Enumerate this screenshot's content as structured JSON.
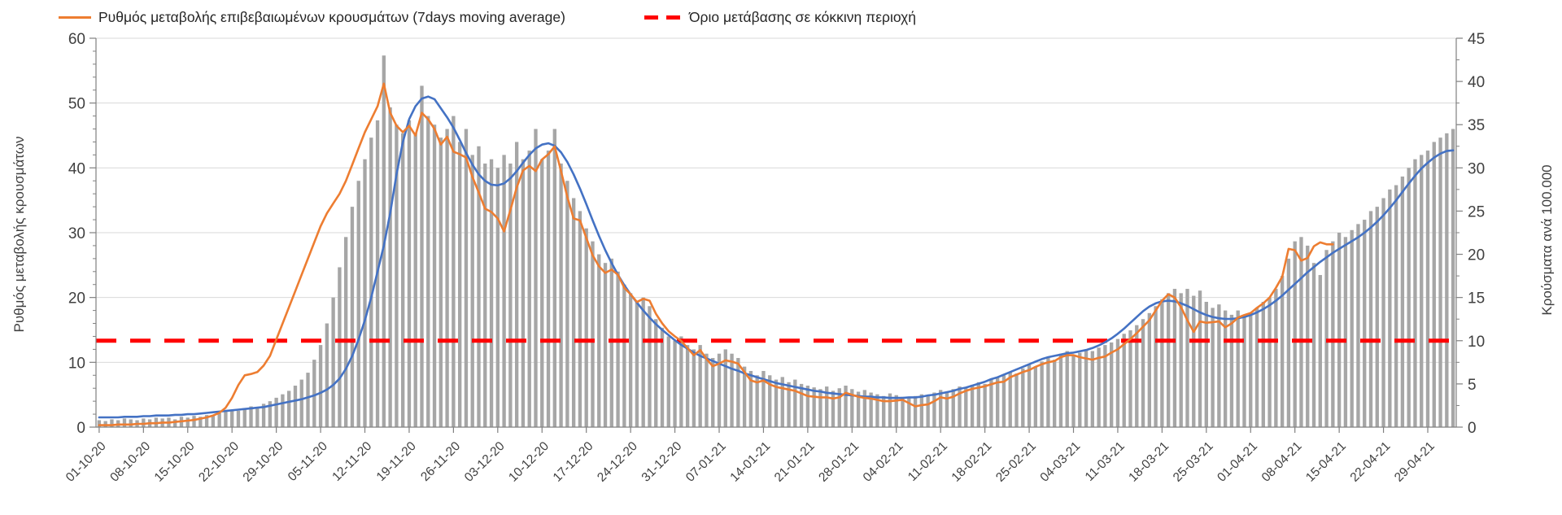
{
  "legend": [
    {
      "label": "Ρυθμός μεταβολής επιβεβαιωμένων κρουσμάτων (7days moving average)",
      "color": "#ED7D31",
      "style": "solid-line"
    },
    {
      "label": "Όριο μετάβασης σε κόκκινη περιοχή",
      "color": "#FF0000",
      "style": "dashed-line"
    }
  ],
  "colors": {
    "bar": "#A6A6A6",
    "orange_line": "#ED7D31",
    "blue_line": "#4472C4",
    "threshold": "#FF0000",
    "grid": "#D9D9D9",
    "axis": "#808080",
    "text": "#404040"
  },
  "chart_data": {
    "type": "combo-bar-line",
    "title": "",
    "left_axis": {
      "label": "Ρυθμός μεταβολής κρουσμάτων",
      "min": 0,
      "max": 60,
      "ticks": [
        0,
        10,
        20,
        30,
        40,
        50,
        60
      ],
      "minor_step": 2
    },
    "right_axis": {
      "label": "Κρούσματα ανά 100.000",
      "min": 0,
      "max": 45,
      "ticks": [
        0,
        5,
        10,
        15,
        20,
        25,
        30,
        35,
        40,
        45
      ],
      "minor_step": 2.5
    },
    "x_axis": {
      "tick_every_days": 7,
      "tick_labels": [
        "01-10-20",
        "08-10-20",
        "15-10-20",
        "22-10-20",
        "29-10-20",
        "05-11-20",
        "12-11-20",
        "19-11-20",
        "26-11-20",
        "03-12-20",
        "10-12-20",
        "17-12-20",
        "24-12-20",
        "31-12-20",
        "07-01-21",
        "14-01-21",
        "21-01-21",
        "28-01-21",
        "04-02-21",
        "11-02-21",
        "18-02-21",
        "25-02-21",
        "04-03-21",
        "11-03-21",
        "18-03-21",
        "25-03-21",
        "01-04-21",
        "08-04-21",
        "15-04-21",
        "22-04-21",
        "29-04-21"
      ]
    },
    "threshold": {
      "axis": "right",
      "value": 10
    },
    "series": [
      {
        "key": "daily_cases_per_100k",
        "type": "bar",
        "axis": "right",
        "values": [
          0.8,
          0.7,
          0.9,
          0.8,
          1.0,
          0.9,
          0.8,
          1.0,
          0.9,
          1.1,
          1.0,
          1.1,
          0.9,
          1.2,
          1.1,
          1.3,
          1.2,
          1.4,
          1.3,
          1.6,
          1.8,
          2.0,
          1.9,
          2.2,
          2.4,
          2.3,
          2.7,
          3.0,
          3.4,
          3.8,
          4.2,
          4.8,
          5.5,
          6.3,
          7.8,
          9.5,
          12.0,
          15.0,
          18.5,
          22.0,
          25.5,
          28.5,
          31.0,
          33.5,
          35.5,
          43.0,
          37.0,
          35.0,
          34.0,
          35.5,
          34.0,
          39.5,
          36.0,
          35.0,
          33.5,
          34.5,
          36.0,
          33.0,
          34.5,
          31.5,
          32.5,
          30.5,
          31.0,
          30.0,
          31.5,
          30.5,
          33.0,
          31.0,
          32.0,
          34.5,
          31.0,
          32.0,
          34.5,
          30.5,
          28.5,
          26.5,
          25.0,
          23.0,
          21.5,
          20.0,
          19.0,
          19.5,
          18.0,
          16.5,
          15.5,
          14.5,
          15.0,
          14.0,
          12.5,
          11.5,
          10.5,
          10.0,
          10.5,
          9.5,
          9.0,
          9.5,
          8.5,
          8.0,
          8.5,
          9.0,
          8.5,
          8.0,
          7.0,
          6.5,
          6.0,
          6.5,
          6.0,
          5.5,
          5.8,
          5.2,
          5.5,
          5.0,
          4.8,
          4.6,
          4.4,
          4.7,
          4.2,
          4.5,
          4.8,
          4.4,
          4.1,
          4.3,
          4.0,
          3.8,
          3.6,
          3.9,
          3.7,
          3.5,
          3.4,
          3.6,
          3.8,
          3.7,
          4.0,
          4.3,
          4.1,
          4.4,
          4.7,
          4.5,
          4.9,
          5.2,
          5.0,
          5.5,
          5.8,
          6.0,
          6.4,
          6.2,
          6.8,
          7.2,
          7.0,
          7.6,
          8.0,
          7.8,
          8.5,
          8.8,
          8.4,
          8.6,
          9.0,
          8.8,
          9.2,
          9.5,
          9.8,
          10.2,
          10.8,
          11.2,
          11.8,
          12.5,
          13.2,
          14.0,
          14.8,
          15.5,
          16.0,
          15.5,
          16.0,
          15.2,
          15.8,
          14.5,
          13.8,
          14.2,
          13.5,
          13.0,
          13.5,
          12.8,
          13.2,
          13.8,
          14.5,
          15.0,
          16.0,
          17.5,
          19.5,
          21.5,
          22.0,
          21.0,
          19.0,
          17.6,
          20.5,
          21.5,
          22.5,
          22.0,
          22.8,
          23.5,
          24.0,
          25.0,
          25.5,
          26.5,
          27.5,
          28.0,
          29.0,
          30.0,
          31.0,
          31.5,
          32.0,
          33.0,
          33.5,
          34.0,
          34.5
        ]
      },
      {
        "key": "smoothed_trend",
        "type": "line",
        "axis": "left",
        "values": [
          1.5,
          1.5,
          1.5,
          1.5,
          1.6,
          1.6,
          1.6,
          1.7,
          1.7,
          1.8,
          1.8,
          1.8,
          1.9,
          1.9,
          2.0,
          2.0,
          2.1,
          2.2,
          2.3,
          2.4,
          2.5,
          2.6,
          2.7,
          2.8,
          2.9,
          3.0,
          3.1,
          3.3,
          3.5,
          3.7,
          3.9,
          4.1,
          4.3,
          4.6,
          4.9,
          5.3,
          5.8,
          6.5,
          7.5,
          9.0,
          11.0,
          13.5,
          16.5,
          20.0,
          24.0,
          28.0,
          33.0,
          39.0,
          44.0,
          47.5,
          49.5,
          50.7,
          51.0,
          50.6,
          49.2,
          47.8,
          46.2,
          44.3,
          42.3,
          40.5,
          39.0,
          38.0,
          37.4,
          37.3,
          37.6,
          38.4,
          39.5,
          40.8,
          42.0,
          43.0,
          43.6,
          43.8,
          43.4,
          42.4,
          40.9,
          39.0,
          36.8,
          34.4,
          31.9,
          29.5,
          27.3,
          25.3,
          23.5,
          21.9,
          20.5,
          19.2,
          18.0,
          16.9,
          15.9,
          15.0,
          14.2,
          13.4,
          12.7,
          12.1,
          11.5,
          11.0,
          10.6,
          10.2,
          9.8,
          9.4,
          9.0,
          8.7,
          8.3,
          8.0,
          7.7,
          7.4,
          7.1,
          6.8,
          6.6,
          6.4,
          6.2,
          6.0,
          5.8,
          5.6,
          5.5,
          5.3,
          5.2,
          5.1,
          5.0,
          4.9,
          4.8,
          4.7,
          4.7,
          4.6,
          4.6,
          4.5,
          4.5,
          4.5,
          4.6,
          4.6,
          4.7,
          4.9,
          5.0,
          5.2,
          5.4,
          5.6,
          5.9,
          6.1,
          6.4,
          6.7,
          7.0,
          7.4,
          7.7,
          8.1,
          8.5,
          8.9,
          9.3,
          9.7,
          10.1,
          10.5,
          10.8,
          11.0,
          11.2,
          11.4,
          11.5,
          11.7,
          11.9,
          12.2,
          12.6,
          13.1,
          13.7,
          14.4,
          15.2,
          16.1,
          17.0,
          17.9,
          18.6,
          19.1,
          19.4,
          19.5,
          19.4,
          19.1,
          18.7,
          18.2,
          17.7,
          17.3,
          17.0,
          16.8,
          16.7,
          16.7,
          16.8,
          17.0,
          17.3,
          17.7,
          18.2,
          18.8,
          19.5,
          20.3,
          21.2,
          22.1,
          23.0,
          23.9,
          24.7,
          25.5,
          26.2,
          26.9,
          27.5,
          28.1,
          28.7,
          29.3,
          30.0,
          30.8,
          31.7,
          32.7,
          33.8,
          35.0,
          36.3,
          37.6,
          38.8,
          39.9,
          40.8,
          41.6,
          42.2,
          42.6,
          42.7
        ]
      },
      {
        "key": "rate_of_change_7d_ma",
        "type": "line",
        "axis": "left",
        "values": [
          0.3,
          0.3,
          0.3,
          0.4,
          0.4,
          0.4,
          0.5,
          0.5,
          0.6,
          0.6,
          0.7,
          0.7,
          0.8,
          0.9,
          1.0,
          1.1,
          1.3,
          1.5,
          1.8,
          2.2,
          3.0,
          4.5,
          6.5,
          8.0,
          8.2,
          8.5,
          9.5,
          11.0,
          13.5,
          16.0,
          18.5,
          21.0,
          23.5,
          26.0,
          28.5,
          31.0,
          33.0,
          34.5,
          36.0,
          38.0,
          40.5,
          43.0,
          45.5,
          47.5,
          49.5,
          53.0,
          48.5,
          46.5,
          45.5,
          46.5,
          45.0,
          48.5,
          47.5,
          46.0,
          43.6,
          44.8,
          42.5,
          42.1,
          41.6,
          38.6,
          36.2,
          33.7,
          33.2,
          32.2,
          30.2,
          33.5,
          37.0,
          39.6,
          40.3,
          39.5,
          41.3,
          42.1,
          43.3,
          39.5,
          35.5,
          32.2,
          31.9,
          29.2,
          26.5,
          24.8,
          23.8,
          24.3,
          23.5,
          21.5,
          20.5,
          19.3,
          19.8,
          19.5,
          17.5,
          16.0,
          14.8,
          14.0,
          13.3,
          12.2,
          11.1,
          11.9,
          10.5,
          9.4,
          9.8,
          10.3,
          10.1,
          9.8,
          8.5,
          7.2,
          6.9,
          7.2,
          6.6,
          6.2,
          6.0,
          5.8,
          5.6,
          5.2,
          4.8,
          4.7,
          4.6,
          4.6,
          4.4,
          4.6,
          5.3,
          5.0,
          4.7,
          4.5,
          4.4,
          4.2,
          4.0,
          4.0,
          4.1,
          4.2,
          3.7,
          3.2,
          3.4,
          3.5,
          4.0,
          4.6,
          4.4,
          4.7,
          5.2,
          5.6,
          5.9,
          6.1,
          6.3,
          6.6,
          6.9,
          7.0,
          7.7,
          8.1,
          8.5,
          8.8,
          9.3,
          9.7,
          10.0,
          10.2,
          10.8,
          11.1,
          11.1,
          10.8,
          10.6,
          10.4,
          10.7,
          10.9,
          11.5,
          12.0,
          12.8,
          13.6,
          14.5,
          15.5,
          16.5,
          18.0,
          19.5,
          20.5,
          20.0,
          18.5,
          16.5,
          14.7,
          16.3,
          16.1,
          16.2,
          16.3,
          15.4,
          16.0,
          16.9,
          17.3,
          17.6,
          18.4,
          19.1,
          20.0,
          21.5,
          23.2,
          27.5,
          27.3,
          25.7,
          26.1,
          27.9,
          28.5,
          28.2,
          28.2
        ]
      }
    ]
  }
}
